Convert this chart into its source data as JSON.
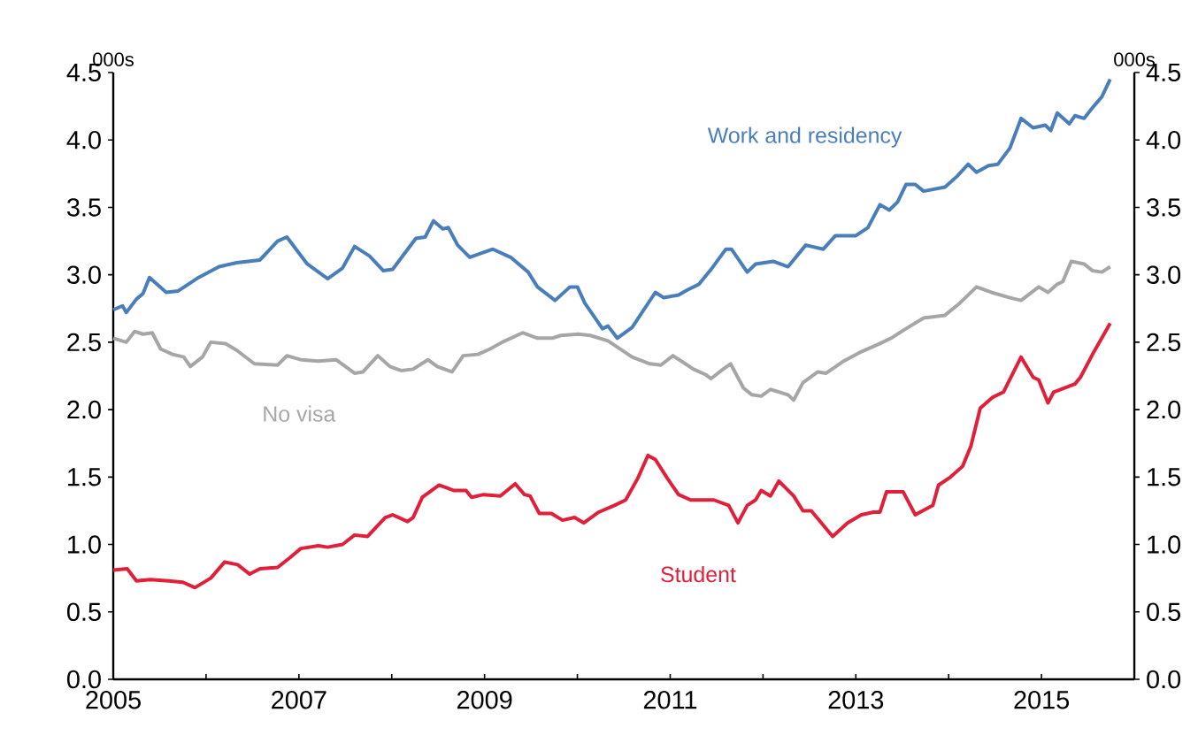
{
  "chart_data": {
    "type": "line",
    "ylabel": "000s",
    "y2label": "000s",
    "xlim": [
      2005,
      2016
    ],
    "ylim": [
      0,
      4.5
    ],
    "y2lim": [
      0,
      4.5
    ],
    "xticks": [
      2005,
      {
        "value": 2006,
        "label": null
      },
      2007,
      {
        "value": 2008,
        "label": null
      },
      2009,
      {
        "value": 2010,
        "label": null
      },
      2011,
      {
        "value": 2012,
        "label": null
      },
      2013,
      {
        "value": 2014,
        "label": null
      },
      2015,
      {
        "value": 2016,
        "label": null
      }
    ],
    "yticks": [
      {
        "value": 0,
        "label": "0.0"
      },
      0.5,
      {
        "value": 1,
        "label": "1.0"
      },
      1.5,
      {
        "value": 2,
        "label": "2.0"
      },
      2.5,
      {
        "value": 3,
        "label": "3.0"
      },
      3.5,
      {
        "value": 4,
        "label": "4.0"
      },
      4.5
    ],
    "y2ticks": [
      {
        "value": 0,
        "label": "0.0"
      },
      0.5,
      {
        "value": 1,
        "label": "1.0"
      },
      1.5,
      {
        "value": 2,
        "label": "2.0"
      },
      2.5,
      {
        "value": 3,
        "label": "3.0"
      },
      3.5,
      {
        "value": 4,
        "label": "4.0"
      },
      4.5
    ],
    "series": [
      {
        "name": "Work and residency",
        "color": "#4a7ebb",
        "x": [
          2005.0,
          2005.1,
          2005.14,
          2005.25,
          2005.32,
          2005.39,
          2005.57,
          2005.7,
          2005.92,
          2006.14,
          2006.33,
          2006.58,
          2006.77,
          2006.87,
          2007.09,
          2007.31,
          2007.47,
          2007.6,
          2007.76,
          2007.91,
          2008.01,
          2008.14,
          2008.26,
          2008.36,
          2008.45,
          2008.55,
          2008.61,
          2008.71,
          2008.84,
          2009.09,
          2009.28,
          2009.47,
          2009.57,
          2009.76,
          2009.92,
          2010.0,
          2010.08,
          2010.27,
          2010.33,
          2010.43,
          2010.59,
          2010.84,
          2010.93,
          2011.09,
          2011.19,
          2011.31,
          2011.44,
          2011.6,
          2011.66,
          2011.83,
          2011.92,
          2012.11,
          2012.27,
          2012.46,
          2012.65,
          2012.78,
          2013.0,
          2013.13,
          2013.26,
          2013.36,
          2013.45,
          2013.54,
          2013.64,
          2013.73,
          2013.96,
          2014.09,
          2014.21,
          2014.3,
          2014.43,
          2014.53,
          2014.66,
          2014.78,
          2014.91,
          2015.04,
          2015.1,
          2015.17,
          2015.3,
          2015.36,
          2015.46,
          2015.55,
          2015.65,
          2015.74
        ],
        "values": [
          2.74,
          2.77,
          2.72,
          2.82,
          2.86,
          2.98,
          2.87,
          2.88,
          2.98,
          3.06,
          3.09,
          3.11,
          3.25,
          3.28,
          3.08,
          2.97,
          3.05,
          3.21,
          3.14,
          3.03,
          3.04,
          3.16,
          3.27,
          3.28,
          3.4,
          3.34,
          3.35,
          3.22,
          3.13,
          3.19,
          3.13,
          3.02,
          2.91,
          2.81,
          2.91,
          2.91,
          2.79,
          2.6,
          2.62,
          2.53,
          2.61,
          2.87,
          2.83,
          2.85,
          2.89,
          2.93,
          3.04,
          3.19,
          3.19,
          3.02,
          3.08,
          3.1,
          3.06,
          3.22,
          3.19,
          3.29,
          3.29,
          3.35,
          3.52,
          3.48,
          3.54,
          3.67,
          3.67,
          3.62,
          3.65,
          3.73,
          3.82,
          3.76,
          3.81,
          3.82,
          3.94,
          4.16,
          4.09,
          4.11,
          4.07,
          4.2,
          4.12,
          4.18,
          4.16,
          4.24,
          4.32,
          4.45
        ]
      },
      {
        "name": "No visa",
        "color": "#a6a6a6",
        "x": [
          2005.0,
          2005.14,
          2005.23,
          2005.32,
          2005.42,
          2005.51,
          2005.64,
          2005.76,
          2005.83,
          2005.96,
          2006.05,
          2006.21,
          2006.33,
          2006.52,
          2006.77,
          2006.87,
          2007.02,
          2007.21,
          2007.4,
          2007.6,
          2007.69,
          2007.85,
          2007.98,
          2008.1,
          2008.23,
          2008.39,
          2008.49,
          2008.65,
          2008.77,
          2008.93,
          2009.06,
          2009.19,
          2009.41,
          2009.57,
          2009.73,
          2009.82,
          2010.01,
          2010.14,
          2010.33,
          2010.59,
          2010.78,
          2010.9,
          2011.03,
          2011.12,
          2011.25,
          2011.38,
          2011.44,
          2011.57,
          2011.65,
          2011.79,
          2011.88,
          2011.98,
          2012.08,
          2012.27,
          2012.33,
          2012.43,
          2012.59,
          2012.68,
          2012.87,
          2013.06,
          2013.26,
          2013.38,
          2013.54,
          2013.73,
          2013.96,
          2014.12,
          2014.3,
          2014.46,
          2014.66,
          2014.78,
          2014.97,
          2015.07,
          2015.17,
          2015.23,
          2015.32,
          2015.46,
          2015.55,
          2015.65,
          2015.74
        ],
        "values": [
          2.53,
          2.5,
          2.58,
          2.56,
          2.57,
          2.45,
          2.41,
          2.39,
          2.32,
          2.39,
          2.5,
          2.49,
          2.44,
          2.34,
          2.33,
          2.4,
          2.37,
          2.36,
          2.37,
          2.27,
          2.28,
          2.4,
          2.32,
          2.29,
          2.3,
          2.37,
          2.32,
          2.28,
          2.4,
          2.41,
          2.45,
          2.5,
          2.57,
          2.53,
          2.53,
          2.55,
          2.56,
          2.55,
          2.51,
          2.39,
          2.34,
          2.33,
          2.4,
          2.36,
          2.3,
          2.26,
          2.23,
          2.3,
          2.34,
          2.16,
          2.11,
          2.1,
          2.15,
          2.11,
          2.07,
          2.2,
          2.28,
          2.27,
          2.36,
          2.43,
          2.49,
          2.53,
          2.6,
          2.68,
          2.7,
          2.79,
          2.91,
          2.87,
          2.83,
          2.81,
          2.91,
          2.87,
          2.93,
          2.95,
          3.1,
          3.08,
          3.03,
          3.02,
          3.06
        ]
      },
      {
        "name": "Student",
        "color": "#e0203a",
        "x": [
          2005.0,
          2005.15,
          2005.25,
          2005.4,
          2005.6,
          2005.75,
          2005.88,
          2006.05,
          2006.2,
          2006.34,
          2006.47,
          2006.58,
          2006.77,
          2006.9,
          2007.02,
          2007.21,
          2007.31,
          2007.47,
          2007.6,
          2007.74,
          2007.93,
          2008.01,
          2008.17,
          2008.23,
          2008.33,
          2008.51,
          2008.67,
          2008.8,
          2008.86,
          2008.99,
          2009.17,
          2009.33,
          2009.43,
          2009.49,
          2009.59,
          2009.72,
          2009.84,
          2009.97,
          2010.07,
          2010.23,
          2010.4,
          2010.52,
          2010.65,
          2010.76,
          2010.84,
          2010.97,
          2011.09,
          2011.22,
          2011.47,
          2011.63,
          2011.73,
          2011.83,
          2011.92,
          2011.98,
          2012.08,
          2012.17,
          2012.33,
          2012.43,
          2012.52,
          2012.75,
          2012.91,
          2013.06,
          2013.19,
          2013.26,
          2013.33,
          2013.51,
          2013.64,
          2013.83,
          2013.89,
          2014.02,
          2014.15,
          2014.24,
          2014.34,
          2014.47,
          2014.59,
          2014.78,
          2014.91,
          2014.97,
          2015.07,
          2015.13,
          2015.36,
          2015.42,
          2015.55,
          2015.74
        ],
        "values": [
          0.81,
          0.82,
          0.73,
          0.74,
          0.73,
          0.72,
          0.68,
          0.75,
          0.87,
          0.85,
          0.78,
          0.82,
          0.83,
          0.9,
          0.97,
          0.99,
          0.98,
          1.0,
          1.07,
          1.06,
          1.2,
          1.22,
          1.17,
          1.2,
          1.35,
          1.44,
          1.4,
          1.4,
          1.35,
          1.37,
          1.36,
          1.45,
          1.37,
          1.36,
          1.23,
          1.23,
          1.18,
          1.2,
          1.16,
          1.24,
          1.29,
          1.33,
          1.49,
          1.66,
          1.63,
          1.49,
          1.37,
          1.33,
          1.33,
          1.29,
          1.16,
          1.29,
          1.33,
          1.4,
          1.36,
          1.47,
          1.36,
          1.25,
          1.25,
          1.06,
          1.16,
          1.22,
          1.24,
          1.24,
          1.39,
          1.39,
          1.22,
          1.29,
          1.44,
          1.5,
          1.58,
          1.73,
          2.01,
          2.09,
          2.13,
          2.39,
          2.24,
          2.22,
          2.05,
          2.13,
          2.19,
          2.24,
          2.41,
          2.64
        ]
      }
    ]
  }
}
